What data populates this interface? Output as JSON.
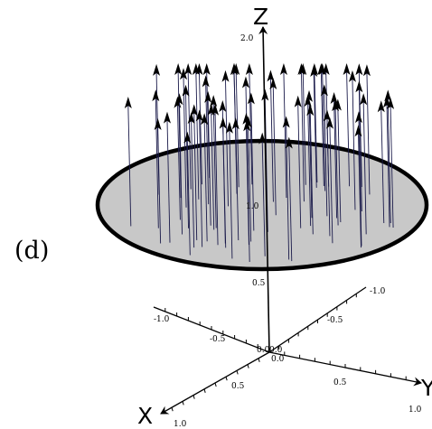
{
  "panel_label": "(d)",
  "axes": {
    "x_name": "X",
    "y_name": "Y",
    "z_name": "Z"
  },
  "tick_labels": {
    "z_top": "2.0",
    "z_mid": "1.0",
    "z_low": "0.5",
    "origin_x": "0.0",
    "origin_z": "0.0",
    "origin_y": "0.0",
    "x_neg_far": "-1.0",
    "x_neg_mid": "-0.5",
    "x_pos_mid": "0.5",
    "x_pos_far": "1.0",
    "y_neg_far": "-1.0",
    "y_neg_mid": "-0.5",
    "y_pos_mid": "0.5",
    "y_pos_far": "1.0"
  },
  "arrow_count": 74
}
